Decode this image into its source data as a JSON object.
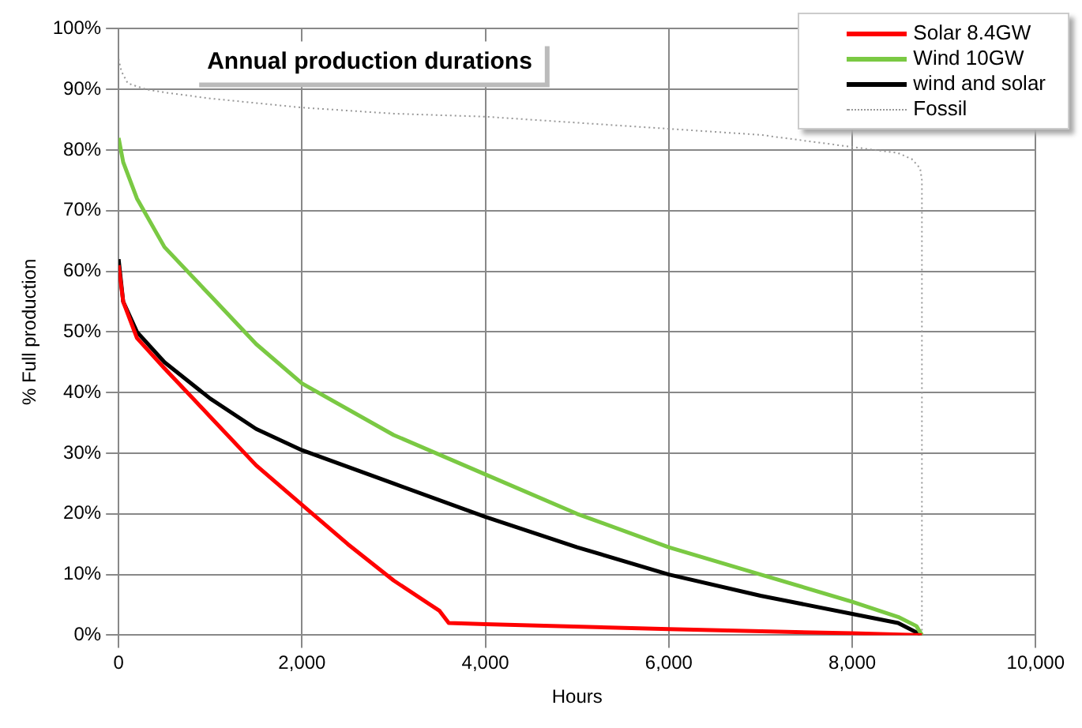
{
  "chart_data": {
    "type": "line",
    "title": "Annual production durations",
    "xlabel": "Hours",
    "ylabel": "% Full production",
    "xlim": [
      0,
      10000
    ],
    "xticks": [
      {
        "value": 0,
        "label": "0"
      },
      {
        "value": 2000,
        "label": "2,000"
      },
      {
        "value": 4000,
        "label": "4,000"
      },
      {
        "value": 6000,
        "label": "6,000"
      },
      {
        "value": 8000,
        "label": "8,000"
      },
      {
        "value": 10000,
        "label": "10,000"
      }
    ],
    "ylim": [
      0,
      100
    ],
    "yticks": [
      {
        "value": 0,
        "label": "0%"
      },
      {
        "value": 10,
        "label": "10%"
      },
      {
        "value": 20,
        "label": "20%"
      },
      {
        "value": 30,
        "label": "30%"
      },
      {
        "value": 40,
        "label": "40%"
      },
      {
        "value": 50,
        "label": "50%"
      },
      {
        "value": 60,
        "label": "60%"
      },
      {
        "value": 70,
        "label": "70%"
      },
      {
        "value": 80,
        "label": "80%"
      },
      {
        "value": 90,
        "label": "90%"
      },
      {
        "value": 100,
        "label": "100%"
      }
    ],
    "grid": true,
    "legend": "top right",
    "marker": "none",
    "series": [
      {
        "name": "Solar 8.4GW",
        "color": "#ff0000",
        "x": [
          0,
          50,
          200,
          500,
          1000,
          1500,
          2000,
          2500,
          3000,
          3500,
          3600,
          4000,
          6000,
          8000,
          8760
        ],
        "values": [
          61,
          55,
          49,
          44,
          36,
          28,
          21.5,
          15,
          9,
          4,
          2,
          1.8,
          1,
          0.3,
          0
        ]
      },
      {
        "name": "Wind 10GW",
        "color": "#7ac943",
        "x": [
          0,
          50,
          200,
          500,
          1000,
          1500,
          2000,
          3000,
          4000,
          5000,
          6000,
          7000,
          8000,
          8500,
          8700,
          8760
        ],
        "values": [
          82,
          78,
          72,
          64,
          56,
          48,
          41.5,
          33,
          26.5,
          20,
          14.5,
          10,
          5.5,
          3,
          1.5,
          0
        ]
      },
      {
        "name": "wind and solar",
        "color": "#000000",
        "x": [
          0,
          50,
          200,
          500,
          1000,
          1500,
          2000,
          3000,
          4000,
          5000,
          6000,
          7000,
          8000,
          8500,
          8760
        ],
        "values": [
          62,
          55,
          50,
          45,
          39,
          34,
          30.5,
          25,
          19.5,
          14.5,
          10,
          6.5,
          3.5,
          2,
          0
        ]
      },
      {
        "name": "Fossil",
        "color": "#999999",
        "line_style": "dotted",
        "x": [
          0,
          30,
          100,
          300,
          500,
          1000,
          2000,
          3000,
          4000,
          5000,
          6000,
          7000,
          8000,
          8500,
          8650,
          8740,
          8760,
          8760
        ],
        "values": [
          95,
          93,
          91,
          90,
          89.5,
          88.5,
          87,
          86,
          85.5,
          84.5,
          83.5,
          82.5,
          80.5,
          79.5,
          78.5,
          77,
          75,
          0
        ]
      }
    ]
  }
}
